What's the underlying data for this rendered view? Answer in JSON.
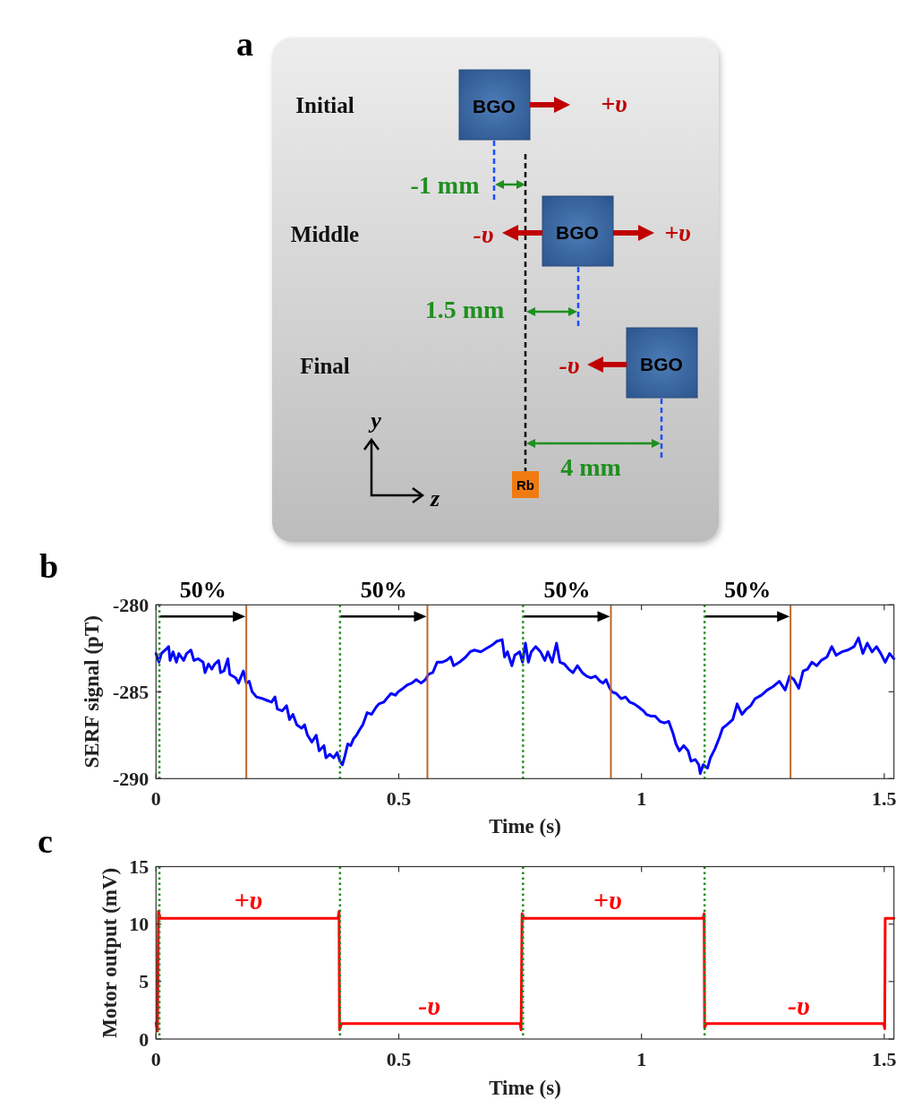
{
  "chart_data": [
    {
      "type": "other",
      "title": "a",
      "annotations": [
        "Initial",
        "Middle",
        "Final",
        "BGO",
        "BGO",
        "BGO",
        "+υ",
        "-υ",
        "+υ",
        "-υ",
        "-1 mm",
        "1.5 mm",
        "4 mm",
        "Rb",
        "y",
        "z"
      ]
    },
    {
      "type": "line",
      "title": "b",
      "xlabel": "Time (s)",
      "ylabel": "SERF signal (pT)",
      "xlim": [
        0,
        1.52
      ],
      "ylim": [
        -290,
        -280
      ],
      "xticks": [
        0,
        0.5,
        1,
        1.5
      ],
      "yticks": [
        -290,
        -285,
        -280
      ],
      "x": [
        0,
        0.006,
        0.011,
        0.019,
        0.026,
        0.029,
        0.035,
        0.042,
        0.047,
        0.057,
        0.063,
        0.072,
        0.078,
        0.087,
        0.097,
        0.101,
        0.108,
        0.115,
        0.121,
        0.129,
        0.133,
        0.14,
        0.148,
        0.152,
        0.164,
        0.17,
        0.18,
        0.186,
        0.192,
        0.198,
        0.207,
        0.22,
        0.229,
        0.238,
        0.245,
        0.25,
        0.26,
        0.269,
        0.275,
        0.282,
        0.29,
        0.3,
        0.306,
        0.312,
        0.321,
        0.33,
        0.336,
        0.346,
        0.35,
        0.358,
        0.366,
        0.373,
        0.379,
        0.384,
        0.389,
        0.395,
        0.401,
        0.407,
        0.413,
        0.419,
        0.426,
        0.435,
        0.444,
        0.453,
        0.459,
        0.469,
        0.475,
        0.484,
        0.493,
        0.499,
        0.509,
        0.518,
        0.527,
        0.536,
        0.546,
        0.555,
        0.561,
        0.57,
        0.579,
        0.589,
        0.598,
        0.607,
        0.613,
        0.625,
        0.638,
        0.647,
        0.656,
        0.669,
        0.681,
        0.693,
        0.702,
        0.713,
        0.718,
        0.724,
        0.733,
        0.739,
        0.749,
        0.755,
        0.761,
        0.767,
        0.773,
        0.782,
        0.792,
        0.801,
        0.807,
        0.816,
        0.825,
        0.832,
        0.841,
        0.85,
        0.859,
        0.868,
        0.878,
        0.887,
        0.896,
        0.905,
        0.915,
        0.921,
        0.927,
        0.933,
        0.939,
        0.948,
        0.958,
        0.967,
        0.976,
        0.985,
        0.995,
        1.004,
        1.01,
        1.019,
        1.028,
        1.038,
        1.047,
        1.056,
        1.065,
        1.071,
        1.078,
        1.087,
        1.096,
        1.102,
        1.111,
        1.118,
        1.121,
        1.127,
        1.136,
        1.142,
        1.151,
        1.161,
        1.167,
        1.176,
        1.188,
        1.197,
        1.207,
        1.216,
        1.225,
        1.234,
        1.247,
        1.259,
        1.271,
        1.284,
        1.296,
        1.305,
        1.314,
        1.324,
        1.333,
        1.342,
        1.351,
        1.361,
        1.37,
        1.382,
        1.392,
        1.401,
        1.413,
        1.425,
        1.438,
        1.447,
        1.456,
        1.465,
        1.475,
        1.484,
        1.493,
        1.502,
        1.511,
        1.52
      ],
      "series": [
        {
          "color": "#0000ff",
          "values": [
            -282.8,
            -283.3,
            -282.8,
            -282.6,
            -282.4,
            -283.2,
            -282.7,
            -283.3,
            -282.8,
            -283.2,
            -282.8,
            -282.6,
            -283.2,
            -283.1,
            -283.3,
            -283.9,
            -283.4,
            -283.7,
            -283.4,
            -283.2,
            -283.9,
            -283.8,
            -283.1,
            -284.0,
            -284.2,
            -284.5,
            -283.8,
            -284.5,
            -284.4,
            -285.0,
            -285.3,
            -285.4,
            -285.5,
            -285.6,
            -285.3,
            -286.0,
            -286.1,
            -285.8,
            -286.6,
            -286.3,
            -286.9,
            -287.1,
            -286.9,
            -287.5,
            -287.9,
            -287.5,
            -288.4,
            -288.1,
            -288.8,
            -288.6,
            -288.8,
            -288.5,
            -289.0,
            -289.2,
            -288.7,
            -288.0,
            -288.1,
            -287.7,
            -287.5,
            -287.2,
            -286.9,
            -286.2,
            -286.3,
            -285.9,
            -285.7,
            -285.6,
            -285.4,
            -285.1,
            -285.2,
            -285.0,
            -284.8,
            -284.6,
            -284.5,
            -284.3,
            -284.5,
            -284.3,
            -284.0,
            -283.9,
            -283.3,
            -283.3,
            -283.2,
            -283.0,
            -283.5,
            -283.3,
            -283.0,
            -282.7,
            -282.6,
            -282.7,
            -282.5,
            -282.3,
            -282.1,
            -282.0,
            -283.0,
            -282.7,
            -283.5,
            -282.9,
            -282.7,
            -283.3,
            -282.2,
            -283.3,
            -282.7,
            -282.4,
            -282.7,
            -283.2,
            -282.7,
            -283.3,
            -282.2,
            -283.3,
            -283.4,
            -283.7,
            -283.9,
            -283.5,
            -283.9,
            -284.1,
            -284.2,
            -284.1,
            -284.4,
            -284.5,
            -284.3,
            -284.7,
            -285.0,
            -285.1,
            -285.4,
            -285.3,
            -285.6,
            -285.7,
            -285.9,
            -286.1,
            -286.3,
            -286.4,
            -286.4,
            -286.7,
            -286.8,
            -286.7,
            -287.4,
            -288.0,
            -288.4,
            -288.1,
            -288.4,
            -289.0,
            -288.9,
            -289.2,
            -289.7,
            -289.2,
            -289.4,
            -288.8,
            -288.3,
            -287.6,
            -287.1,
            -286.9,
            -286.6,
            -285.7,
            -286.3,
            -286.0,
            -285.8,
            -285.4,
            -285.2,
            -284.9,
            -284.7,
            -284.4,
            -284.9,
            -284.1,
            -284.3,
            -284.8,
            -283.8,
            -283.7,
            -283.3,
            -283.5,
            -283.2,
            -283.0,
            -282.4,
            -282.9,
            -282.7,
            -282.6,
            -282.4,
            -281.9,
            -282.8,
            -282.2,
            -282.7,
            -282.4,
            -282.8,
            -283.3,
            -282.8,
            -283.1
          ]
        }
      ],
      "ref_lines": [
        {
          "axis": "x",
          "value": 0.007,
          "color": "#228b22",
          "line_style": "dotted"
        },
        {
          "axis": "x",
          "value": 0.379,
          "color": "#228b22",
          "line_style": "dotted"
        },
        {
          "axis": "x",
          "value": 0.756,
          "color": "#228b22",
          "line_style": "dotted"
        },
        {
          "axis": "x",
          "value": 1.13,
          "color": "#228b22",
          "line_style": "dotted"
        },
        {
          "axis": "x",
          "value": 0.186,
          "color": "#c0662a",
          "line_style": "solid"
        },
        {
          "axis": "x",
          "value": 0.559,
          "color": "#c0662a",
          "line_style": "solid"
        },
        {
          "axis": "x",
          "value": 0.937,
          "color": "#c0662a",
          "line_style": "solid"
        },
        {
          "axis": "x",
          "value": 1.307,
          "color": "#c0662a",
          "line_style": "solid"
        }
      ],
      "annotations": [
        "50%",
        "50%",
        "50%",
        "50%"
      ]
    },
    {
      "type": "line",
      "title": "c",
      "xlabel": "Time (s)",
      "ylabel": "Motor output (mV)",
      "xlim": [
        0,
        1.52
      ],
      "ylim": [
        0,
        15
      ],
      "xticks": [
        0,
        0.5,
        1,
        1.5
      ],
      "yticks": [
        0,
        5,
        10,
        15
      ],
      "x": [
        0,
        0.003,
        0.005,
        0.009,
        0.375,
        0.377,
        0.378,
        0.382,
        0.75,
        0.752,
        0.754,
        0.758,
        1.127,
        1.129,
        1.13,
        1.134,
        1.499,
        1.501,
        1.502,
        1.52
      ],
      "series": [
        {
          "color": "#ff0000",
          "values": [
            1.4,
            0.7,
            11.1,
            10.5,
            10.5,
            11.1,
            0.8,
            1.35,
            1.35,
            0.8,
            10.9,
            10.5,
            10.5,
            10.9,
            1.0,
            1.35,
            1.35,
            0.9,
            10.5,
            10.5
          ]
        }
      ],
      "ref_lines": [
        {
          "axis": "x",
          "value": 0.007,
          "color": "#228b22",
          "line_style": "dotted"
        },
        {
          "axis": "x",
          "value": 0.379,
          "color": "#228b22",
          "line_style": "dotted"
        },
        {
          "axis": "x",
          "value": 0.756,
          "color": "#228b22",
          "line_style": "dotted"
        },
        {
          "axis": "x",
          "value": 1.13,
          "color": "#228b22",
          "line_style": "dotted"
        }
      ],
      "annotations": [
        {
          "text": "+υ",
          "x": 0.19,
          "y": 10.5
        },
        {
          "text": "-υ",
          "x": 0.563,
          "y": 1.35
        },
        {
          "text": "+υ",
          "x": 0.93,
          "y": 10.5
        },
        {
          "text": "-υ",
          "x": 1.324,
          "y": 1.35
        }
      ]
    }
  ]
}
